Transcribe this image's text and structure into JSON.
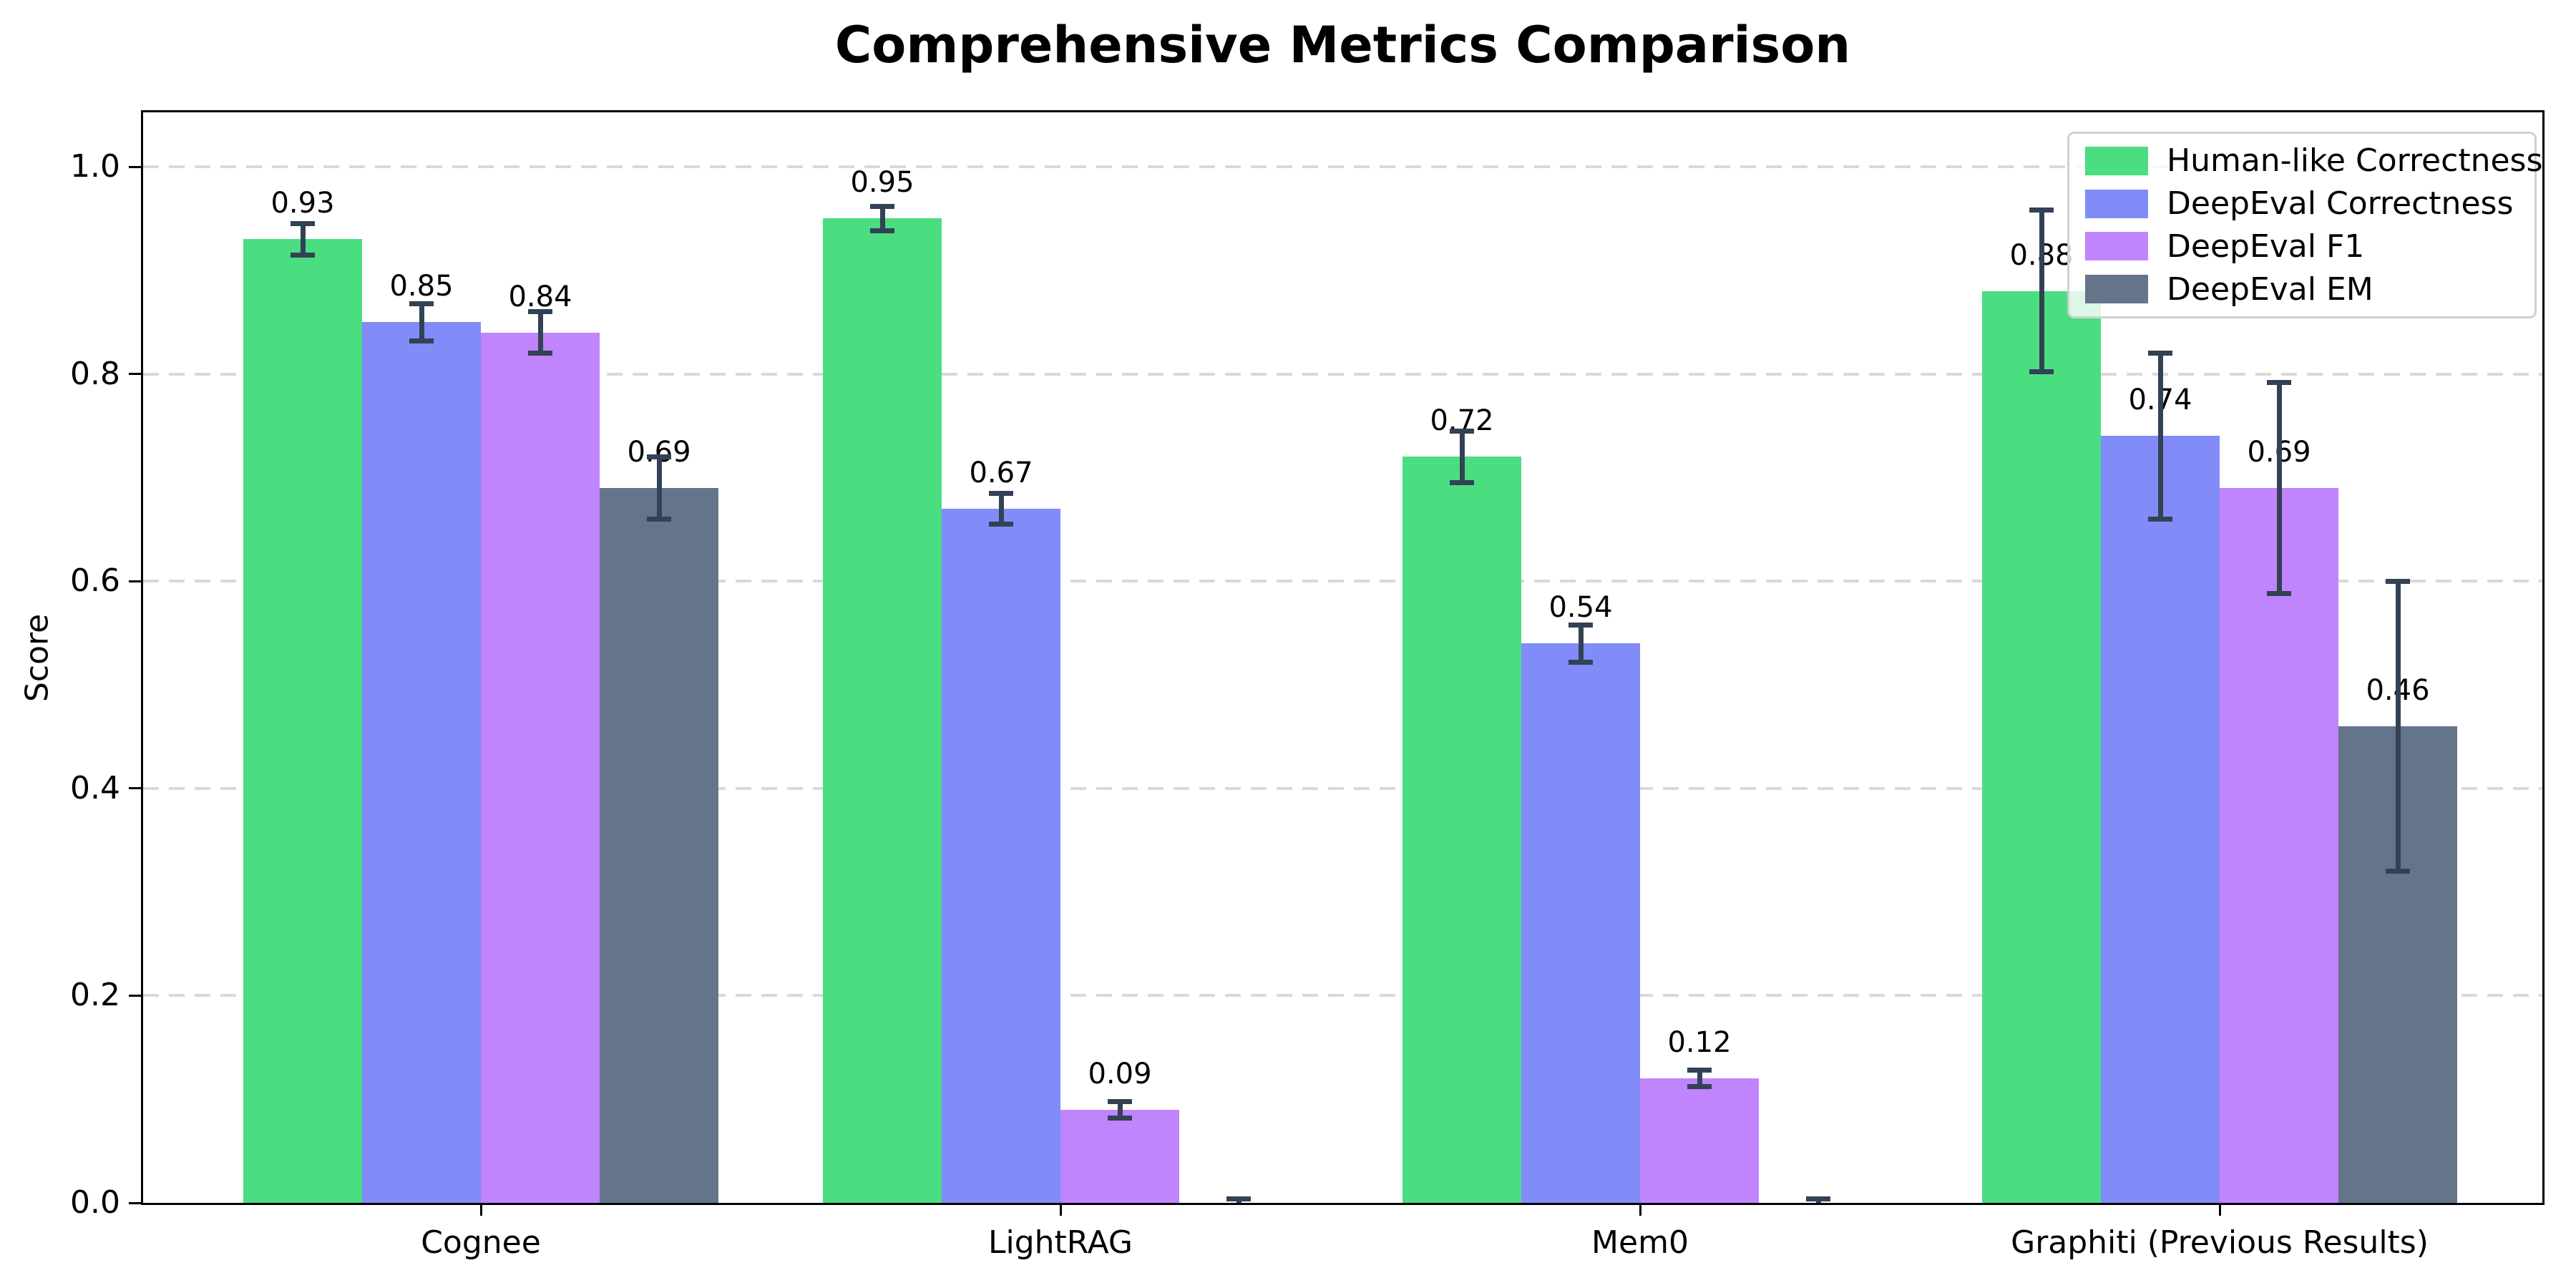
{
  "chart_data": {
    "type": "bar",
    "title": "Comprehensive Metrics Comparison",
    "xlabel": "",
    "ylabel": "Score",
    "categories": [
      "Cognee",
      "LightRAG",
      "Mem0",
      "Graphiti (Previous Results)"
    ],
    "series": [
      {
        "name": "Human-like Correctness",
        "color": "#4ade80",
        "values": [
          0.93,
          0.95,
          0.72,
          0.88
        ],
        "errors": [
          0.015,
          0.012,
          0.025,
          0.078
        ],
        "labels": [
          "0.93",
          "0.95",
          "0.72",
          "0.88"
        ]
      },
      {
        "name": "DeepEval Correctness",
        "color": "#818cf8",
        "values": [
          0.85,
          0.67,
          0.54,
          0.74
        ],
        "errors": [
          0.018,
          0.015,
          0.018,
          0.08
        ],
        "labels": [
          "0.85",
          "0.67",
          "0.54",
          "0.74"
        ]
      },
      {
        "name": "DeepEval F1",
        "color": "#c084fc",
        "values": [
          0.84,
          0.09,
          0.12,
          0.69
        ],
        "errors": [
          0.02,
          0.008,
          0.008,
          0.102
        ],
        "labels": [
          "0.84",
          "0.09",
          "0.12",
          "0.69"
        ]
      },
      {
        "name": "DeepEval EM",
        "color": "#64748b",
        "values": [
          0.69,
          0.0,
          0.0,
          0.46
        ],
        "errors": [
          0.03,
          0.004,
          0.004,
          0.14
        ],
        "labels": [
          "0.69",
          "",
          "",
          "0.46"
        ]
      }
    ],
    "ytick_labels": [
      "0.0",
      "0.2",
      "0.4",
      "0.6",
      "0.8",
      "1.0"
    ],
    "ylim": [
      0,
      1.053
    ],
    "grid": "horizontal-dashed",
    "gridline_color": "#d9d9d9",
    "legend_position": "upper-right",
    "error_bar_color": "#334155",
    "bar_edge": "none"
  }
}
